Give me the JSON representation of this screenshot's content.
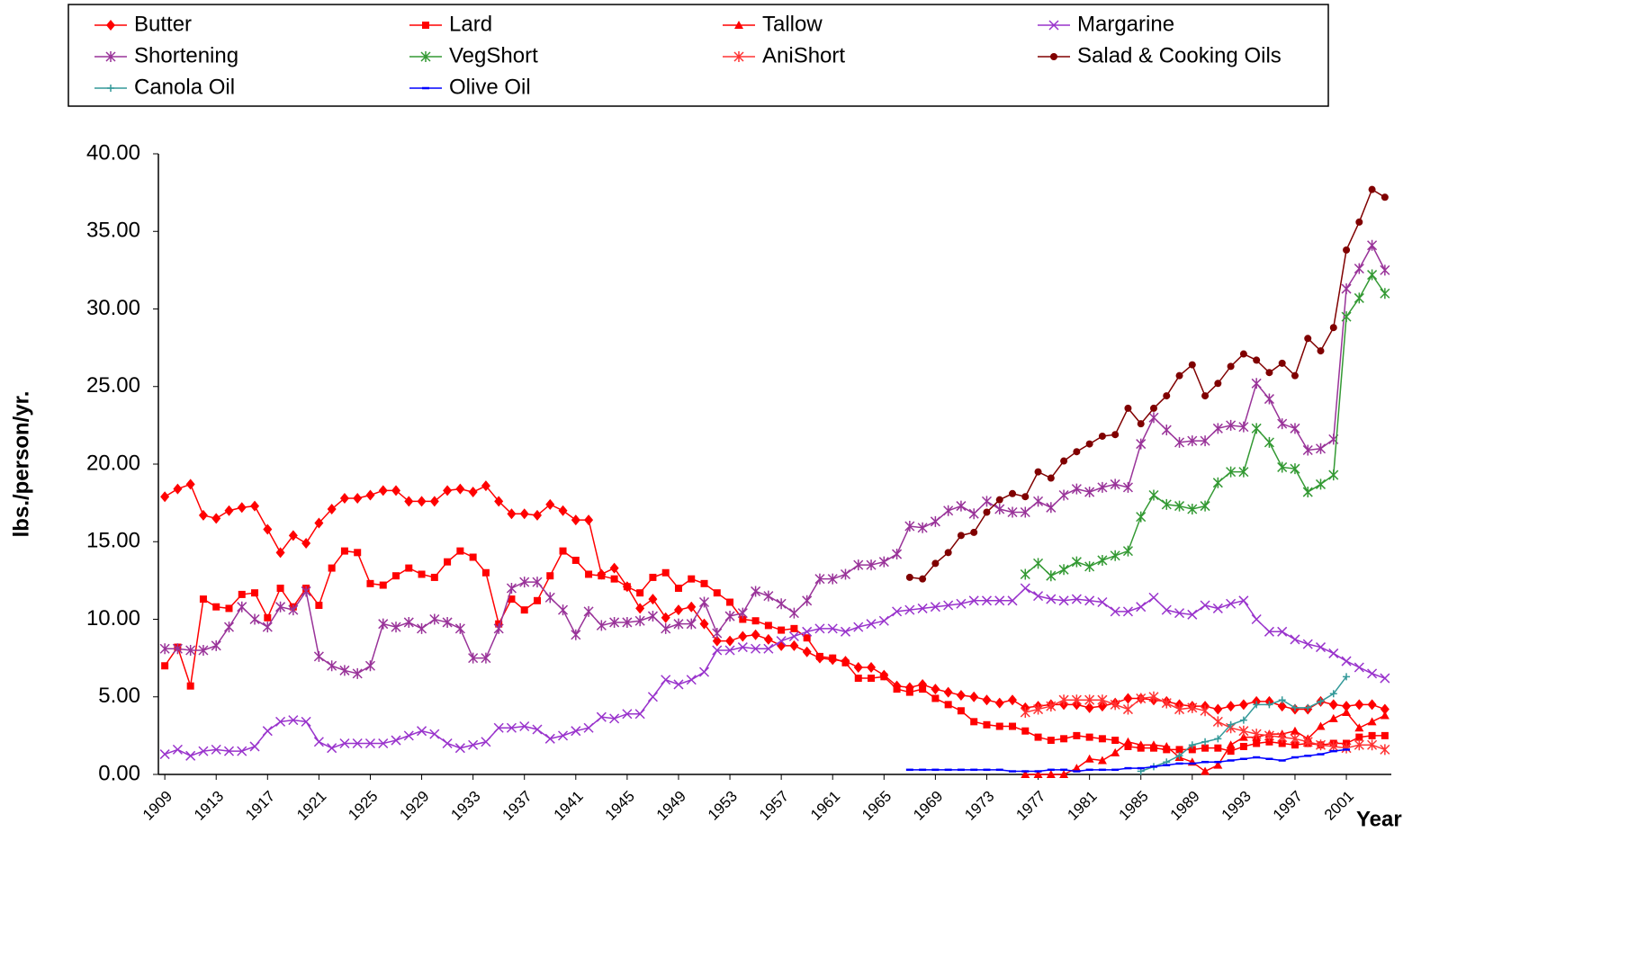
{
  "chart_data": {
    "type": "line",
    "ylabel": "lbs./person/yr.",
    "xlabel": "Year",
    "x": [
      1909,
      1910,
      1911,
      1912,
      1913,
      1914,
      1915,
      1916,
      1917,
      1918,
      1919,
      1920,
      1921,
      1922,
      1923,
      1924,
      1925,
      1926,
      1927,
      1928,
      1929,
      1930,
      1931,
      1932,
      1933,
      1934,
      1935,
      1936,
      1937,
      1938,
      1939,
      1940,
      1941,
      1942,
      1943,
      1944,
      1945,
      1946,
      1947,
      1948,
      1949,
      1950,
      1951,
      1952,
      1953,
      1954,
      1955,
      1956,
      1957,
      1958,
      1959,
      1960,
      1961,
      1962,
      1963,
      1964,
      1965,
      1966,
      1967,
      1968,
      1969,
      1970,
      1971,
      1972,
      1973,
      1974,
      1975,
      1976,
      1977,
      1978,
      1979,
      1980,
      1981,
      1982,
      1983,
      1984,
      1985,
      1986,
      1987,
      1988,
      1989,
      1990,
      1991,
      1992,
      1993,
      1994,
      1995,
      1996,
      1997,
      1998,
      1999,
      2000,
      2001,
      2002,
      2003,
      2004
    ],
    "xlim": [
      1908.5,
      2004.5
    ],
    "xticks": [
      1909,
      1913,
      1917,
      1921,
      1925,
      1929,
      1933,
      1937,
      1941,
      1945,
      1949,
      1953,
      1957,
      1961,
      1965,
      1969,
      1973,
      1977,
      1981,
      1985,
      1989,
      1993,
      1997,
      2001
    ],
    "ylim": [
      0,
      40
    ],
    "yticks": [
      {
        "value": 0,
        "label": "0.00"
      },
      {
        "value": 5,
        "label": "5.00"
      },
      {
        "value": 10,
        "label": "10.00"
      },
      {
        "value": 15,
        "label": "15.00"
      },
      {
        "value": 20,
        "label": "20.00"
      },
      {
        "value": 25,
        "label": "25.00"
      },
      {
        "value": 30,
        "label": "30.00"
      },
      {
        "value": 35,
        "label": "35.00"
      },
      {
        "value": 40,
        "label": "40.00"
      }
    ],
    "grid": false,
    "legend": "top",
    "series": [
      {
        "name": "Butter",
        "color": "#ff0000",
        "marker": "diamond",
        "values": [
          17.9,
          18.4,
          18.7,
          16.7,
          16.5,
          17.0,
          17.2,
          17.3,
          15.8,
          14.3,
          15.4,
          14.9,
          16.2,
          17.1,
          17.8,
          17.8,
          18.0,
          18.3,
          18.3,
          17.6,
          17.6,
          17.6,
          18.3,
          18.4,
          18.2,
          18.6,
          17.6,
          16.8,
          16.8,
          16.7,
          17.4,
          17.0,
          16.4,
          16.4,
          12.9,
          13.3,
          12.1,
          10.7,
          11.3,
          10.1,
          10.6,
          10.8,
          9.7,
          8.6,
          8.6,
          8.9,
          9.0,
          8.7,
          8.3,
          8.3,
          7.9,
          7.5,
          7.4,
          7.3,
          6.9,
          6.9,
          6.4,
          5.7,
          5.6,
          5.8,
          5.5,
          5.3,
          5.1,
          5.0,
          4.8,
          4.6,
          4.8,
          4.3,
          4.4,
          4.5,
          4.5,
          4.5,
          4.3,
          4.4,
          4.6,
          4.9,
          4.9,
          4.8,
          4.7,
          4.5,
          4.4,
          4.4,
          4.2,
          4.4,
          4.5,
          4.7,
          4.7,
          4.4,
          4.2,
          4.2,
          4.7,
          4.5,
          4.4,
          4.5,
          4.5,
          4.2
        ]
      },
      {
        "name": "Lard",
        "color": "#ff0000",
        "marker": "square",
        "values": [
          7.0,
          8.2,
          5.7,
          11.3,
          10.8,
          10.7,
          11.6,
          11.7,
          10.1,
          12.0,
          10.8,
          12.0,
          10.9,
          13.3,
          14.4,
          14.3,
          12.3,
          12.2,
          12.8,
          13.3,
          12.9,
          12.7,
          13.7,
          14.4,
          14.0,
          13.0,
          9.7,
          11.3,
          10.6,
          11.2,
          12.8,
          14.4,
          13.8,
          12.9,
          12.8,
          12.6,
          12.1,
          11.7,
          12.7,
          13.0,
          12.0,
          12.6,
          12.3,
          11.7,
          11.1,
          10.0,
          9.9,
          9.6,
          9.3,
          9.4,
          8.8,
          7.6,
          7.5,
          7.2,
          6.2,
          6.2,
          6.3,
          5.5,
          5.3,
          5.5,
          4.9,
          4.5,
          4.1,
          3.4,
          3.2,
          3.1,
          3.1,
          2.8,
          2.4,
          2.2,
          2.3,
          2.5,
          2.4,
          2.3,
          2.2,
          1.8,
          1.7,
          1.7,
          1.6,
          1.6,
          1.6,
          1.7,
          1.7,
          1.5,
          1.8,
          2.0,
          2.1,
          2.0,
          1.9,
          2.0,
          1.9,
          2.0,
          2.0,
          2.4,
          2.5,
          2.5
        ]
      },
      {
        "name": "Tallow",
        "color": "#ff0000",
        "marker": "triangle",
        "values": [
          null,
          null,
          null,
          null,
          null,
          null,
          null,
          null,
          null,
          null,
          null,
          null,
          null,
          null,
          null,
          null,
          null,
          null,
          null,
          null,
          null,
          null,
          null,
          null,
          null,
          null,
          null,
          null,
          null,
          null,
          null,
          null,
          null,
          null,
          null,
          null,
          null,
          null,
          null,
          null,
          null,
          null,
          null,
          null,
          null,
          null,
          null,
          null,
          null,
          null,
          null,
          null,
          null,
          null,
          null,
          null,
          null,
          null,
          null,
          null,
          null,
          null,
          null,
          null,
          null,
          null,
          null,
          0,
          0,
          0,
          0,
          0.4,
          1.0,
          0.9,
          1.4,
          2.1,
          1.9,
          1.9,
          1.8,
          1.1,
          0.8,
          0.2,
          0.6,
          1.9,
          2.4,
          2.4,
          2.6,
          2.6,
          2.8,
          2.3,
          3.1,
          3.6,
          4.0,
          3.0,
          3.4,
          3.8
        ]
      },
      {
        "name": "Margarine",
        "color": "#9933cc",
        "marker": "x",
        "values": [
          1.3,
          1.6,
          1.2,
          1.5,
          1.6,
          1.5,
          1.5,
          1.8,
          2.8,
          3.4,
          3.5,
          3.4,
          2.1,
          1.7,
          2.0,
          2.0,
          2.0,
          2.0,
          2.2,
          2.5,
          2.8,
          2.6,
          2.0,
          1.7,
          1.9,
          2.1,
          3.0,
          3.0,
          3.1,
          2.9,
          2.3,
          2.5,
          2.8,
          3.0,
          3.7,
          3.6,
          3.9,
          3.9,
          5.0,
          6.1,
          5.8,
          6.1,
          6.6,
          8.0,
          8.0,
          8.2,
          8.1,
          8.1,
          8.6,
          8.9,
          9.2,
          9.4,
          9.4,
          9.2,
          9.5,
          9.7,
          9.9,
          10.5,
          10.6,
          10.7,
          10.8,
          10.9,
          11.0,
          11.2,
          11.2,
          11.2,
          11.2,
          12.0,
          11.5,
          11.3,
          11.2,
          11.3,
          11.2,
          11.1,
          10.5,
          10.5,
          10.8,
          11.4,
          10.6,
          10.4,
          10.3,
          10.9,
          10.7,
          11.0,
          11.2,
          10.0,
          9.2,
          9.2,
          8.7,
          8.4,
          8.2,
          7.8,
          7.3,
          6.9,
          6.5,
          6.2
        ]
      },
      {
        "name": "Shortening",
        "color": "#993399",
        "marker": "star",
        "values": [
          8.1,
          8.1,
          8.0,
          8.0,
          8.3,
          9.5,
          10.8,
          10.0,
          9.5,
          10.8,
          10.6,
          11.8,
          7.6,
          7.0,
          6.7,
          6.5,
          7.0,
          9.7,
          9.5,
          9.8,
          9.4,
          10.0,
          9.8,
          9.4,
          7.5,
          7.5,
          9.4,
          12.0,
          12.4,
          12.4,
          11.4,
          10.6,
          9.0,
          10.5,
          9.6,
          9.8,
          9.8,
          9.9,
          10.2,
          9.4,
          9.7,
          9.7,
          11.1,
          9.1,
          10.2,
          10.4,
          11.8,
          11.5,
          11.0,
          10.4,
          11.2,
          12.6,
          12.6,
          12.9,
          13.5,
          13.5,
          13.7,
          14.2,
          16.0,
          15.9,
          16.3,
          17.0,
          17.3,
          16.8,
          17.6,
          17.1,
          16.9,
          16.9,
          17.6,
          17.2,
          18.0,
          18.4,
          18.2,
          18.5,
          18.7,
          18.5,
          21.3,
          23.0,
          22.2,
          21.4,
          21.5,
          21.5,
          22.3,
          22.5,
          22.4,
          25.2,
          24.2,
          22.6,
          22.3,
          20.9,
          21.0,
          21.6,
          31.3,
          32.6,
          34.1,
          32.5
        ]
      },
      {
        "name": "VegShort",
        "color": "#339933",
        "marker": "star",
        "values": [
          null,
          null,
          null,
          null,
          null,
          null,
          null,
          null,
          null,
          null,
          null,
          null,
          null,
          null,
          null,
          null,
          null,
          null,
          null,
          null,
          null,
          null,
          null,
          null,
          null,
          null,
          null,
          null,
          null,
          null,
          null,
          null,
          null,
          null,
          null,
          null,
          null,
          null,
          null,
          null,
          null,
          null,
          null,
          null,
          null,
          null,
          null,
          null,
          null,
          null,
          null,
          null,
          null,
          null,
          null,
          null,
          null,
          null,
          null,
          null,
          null,
          null,
          null,
          null,
          null,
          null,
          null,
          12.9,
          13.6,
          12.8,
          13.2,
          13.7,
          13.4,
          13.8,
          14.1,
          14.4,
          16.6,
          18.0,
          17.4,
          17.3,
          17.1,
          17.3,
          18.8,
          19.5,
          19.5,
          22.3,
          21.4,
          19.8,
          19.7,
          18.2,
          18.7,
          19.3,
          29.5,
          30.7,
          32.2,
          31.0
        ]
      },
      {
        "name": "AniShort",
        "color": "#ff3333",
        "marker": "star",
        "values": [
          null,
          null,
          null,
          null,
          null,
          null,
          null,
          null,
          null,
          null,
          null,
          null,
          null,
          null,
          null,
          null,
          null,
          null,
          null,
          null,
          null,
          null,
          null,
          null,
          null,
          null,
          null,
          null,
          null,
          null,
          null,
          null,
          null,
          null,
          null,
          null,
          null,
          null,
          null,
          null,
          null,
          null,
          null,
          null,
          null,
          null,
          null,
          null,
          null,
          null,
          null,
          null,
          null,
          null,
          null,
          null,
          null,
          null,
          null,
          null,
          null,
          null,
          null,
          null,
          null,
          null,
          null,
          4.0,
          4.2,
          4.4,
          4.8,
          4.8,
          4.8,
          4.8,
          4.5,
          4.2,
          4.9,
          5.0,
          4.6,
          4.2,
          4.3,
          4.1,
          3.4,
          3.0,
          2.8,
          2.6,
          2.5,
          2.4,
          2.3,
          2.1,
          1.9,
          1.8,
          1.7,
          1.9,
          1.9,
          1.6
        ]
      },
      {
        "name": "Salad & Cooking Oils",
        "color": "#800000",
        "marker": "circle",
        "values": [
          null,
          null,
          null,
          null,
          null,
          null,
          null,
          null,
          null,
          null,
          null,
          null,
          null,
          null,
          null,
          null,
          null,
          null,
          null,
          null,
          null,
          null,
          null,
          null,
          null,
          null,
          null,
          null,
          null,
          null,
          null,
          null,
          null,
          null,
          null,
          null,
          null,
          null,
          null,
          null,
          null,
          null,
          null,
          null,
          null,
          null,
          null,
          null,
          null,
          null,
          null,
          null,
          null,
          null,
          null,
          null,
          null,
          null,
          12.7,
          12.6,
          13.6,
          14.3,
          15.4,
          15.6,
          16.9,
          17.7,
          18.1,
          17.9,
          19.5,
          19.1,
          20.2,
          20.8,
          21.3,
          21.8,
          21.9,
          23.6,
          22.6,
          23.6,
          24.4,
          25.7,
          26.4,
          24.4,
          25.2,
          26.3,
          27.1,
          26.7,
          25.9,
          26.5,
          25.7,
          28.1,
          27.3,
          28.8,
          33.8,
          35.6,
          37.7,
          37.2
        ]
      },
      {
        "name": "Canola Oil",
        "color": "#339999",
        "marker": "plus",
        "values": [
          null,
          null,
          null,
          null,
          null,
          null,
          null,
          null,
          null,
          null,
          null,
          null,
          null,
          null,
          null,
          null,
          null,
          null,
          null,
          null,
          null,
          null,
          null,
          null,
          null,
          null,
          null,
          null,
          null,
          null,
          null,
          null,
          null,
          null,
          null,
          null,
          null,
          null,
          null,
          null,
          null,
          null,
          null,
          null,
          null,
          null,
          null,
          null,
          null,
          null,
          null,
          null,
          null,
          null,
          null,
          null,
          null,
          null,
          null,
          null,
          null,
          null,
          null,
          null,
          null,
          null,
          null,
          null,
          null,
          null,
          null,
          null,
          null,
          null,
          null,
          null,
          0.2,
          0.5,
          0.8,
          1.2,
          1.9,
          2.1,
          2.3,
          3.2,
          3.5,
          4.5,
          4.5,
          4.8,
          4.3,
          4.3,
          4.7,
          5.2,
          6.3,
          null,
          null,
          null
        ]
      },
      {
        "name": "Olive Oil",
        "color": "#0000ff",
        "marker": "dash",
        "values": [
          null,
          null,
          null,
          null,
          null,
          null,
          null,
          null,
          null,
          null,
          null,
          null,
          null,
          null,
          null,
          null,
          null,
          null,
          null,
          null,
          null,
          null,
          null,
          null,
          null,
          null,
          null,
          null,
          null,
          null,
          null,
          null,
          null,
          null,
          null,
          null,
          null,
          null,
          null,
          null,
          null,
          null,
          null,
          null,
          null,
          null,
          null,
          null,
          null,
          null,
          null,
          null,
          null,
          null,
          null,
          null,
          null,
          null,
          0.3,
          0.3,
          0.3,
          0.3,
          0.3,
          0.3,
          0.3,
          0.3,
          0.2,
          0.2,
          0.2,
          0.3,
          0.3,
          0.2,
          0.3,
          0.3,
          0.3,
          0.4,
          0.4,
          0.5,
          0.6,
          0.7,
          0.7,
          0.8,
          0.8,
          0.9,
          1.0,
          1.1,
          1.0,
          0.9,
          1.1,
          1.2,
          1.3,
          1.5,
          1.6,
          null,
          null,
          null
        ]
      }
    ]
  }
}
